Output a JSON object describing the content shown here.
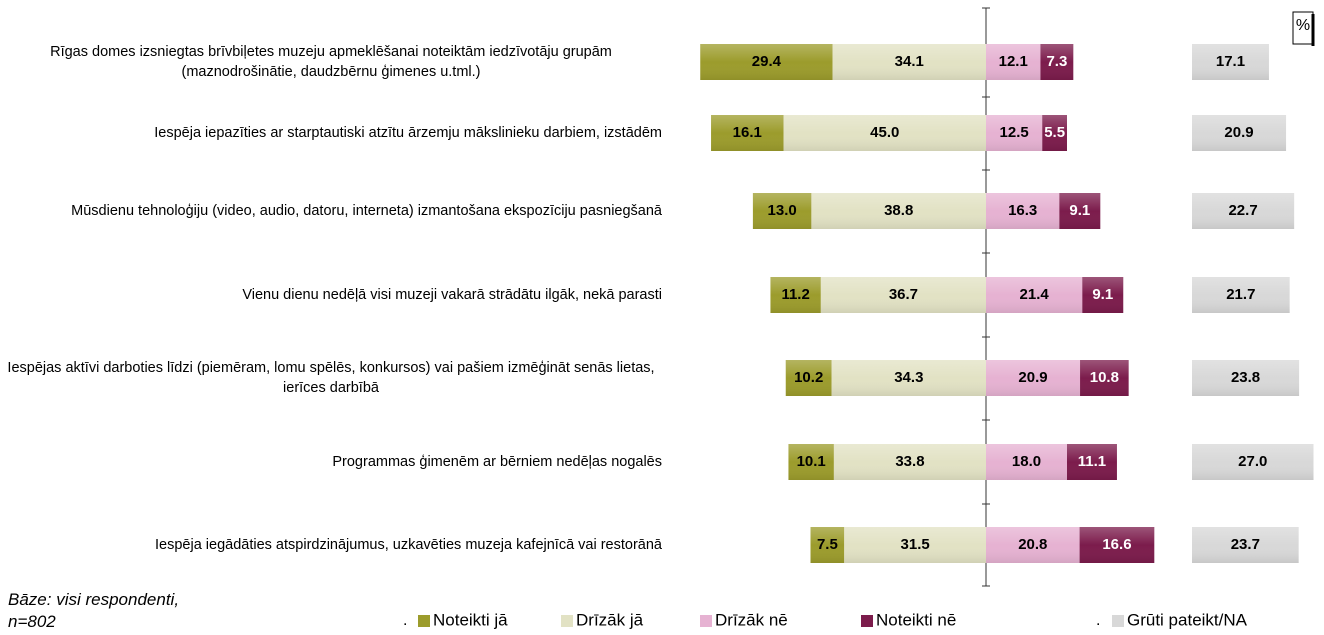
{
  "chart_data": {
    "type": "diverging-bar",
    "categories": [
      "Rīgas domes izsniegtas brīvbiļetes muzeju apmeklēšanai noteiktām iedzīvotāju grupām (maznodrošinātie, daudzbērnu ģimenes u.tml.)",
      "Iespēja iepazīties ar starptautiski atzītu ārzemju mākslinieku darbiem, izstādēm",
      "Mūsdienu tehnoloģiju (video, audio, datoru, interneta) izmantošana ekspozīciju pasniegšanā",
      "Vienu dienu nedēļā visi muzeji vakarā strādātu ilgāk, nekā parasti",
      "Iespējas aktīvi darboties līdzi (piemēram, lomu spēlēs, konkursos) vai pašiem izmēģināt senās lietas, ierīces darbībā",
      "Programmas ģimenēm ar bērniem nedēļas nogalēs",
      "Iespēja iegādāties atspirdzinājumus, uzkavēties muzeja kafejnīcā vai restorānā"
    ],
    "series": [
      {
        "name": "Noteikti jā",
        "color": "#9c9c2c",
        "stack": "negative",
        "values": [
          29.4,
          16.1,
          13.0,
          11.2,
          10.2,
          10.1,
          7.5
        ],
        "value_labels": [
          "29.4",
          "16.1",
          "13.0",
          "11.2",
          "10.2",
          "10.1",
          "7.5"
        ]
      },
      {
        "name": "Drīzāk jā",
        "color": "#e2e2c4",
        "stack": "negative",
        "values": [
          34.1,
          45.0,
          38.8,
          36.7,
          34.3,
          33.8,
          31.5
        ],
        "value_labels": [
          "34.1",
          "45.0",
          "38.8",
          "36.7",
          "34.3",
          "33.8",
          "31.5"
        ]
      },
      {
        "name": "Drīzāk nē",
        "color": "#e6b2d2",
        "stack": "positive",
        "values": [
          12.1,
          12.5,
          16.3,
          21.4,
          20.9,
          18.0,
          20.8
        ],
        "value_labels": [
          "12.1",
          "12.5",
          "16.3",
          "21.4",
          "20.9",
          "18.0",
          "20.8"
        ]
      },
      {
        "name": "Noteikti nē",
        "color": "#7c1c4c",
        "stack": "positive",
        "values": [
          7.3,
          5.5,
          9.1,
          9.1,
          10.8,
          11.1,
          16.6
        ],
        "value_labels": [
          "7.3",
          "5.5",
          "9.1",
          "9.1",
          "10.8",
          "11.1",
          "16.6"
        ]
      },
      {
        "name": "Grūti pateikt/NA",
        "color": "#d8d8d8",
        "stack": "separate",
        "values": [
          17.1,
          20.9,
          22.7,
          21.7,
          23.8,
          27.0,
          23.7
        ],
        "value_labels": [
          "17.1",
          "20.9",
          "22.7",
          "21.7",
          "23.8",
          "27.0",
          "23.7"
        ]
      }
    ],
    "unit_label": "%",
    "footnote": [
      "Bāze: visi respondenti,",
      "n=802"
    ],
    "legend_separators": [
      ".",
      "."
    ]
  }
}
